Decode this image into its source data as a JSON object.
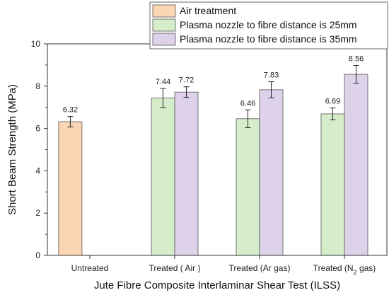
{
  "chart_data": {
    "type": "bar",
    "xlabel": "Jute Fibre Composite Interlaminar Shear Test (ILSS)",
    "ylabel": "Short Beam Strength (MPa)",
    "ylim": [
      0,
      10
    ],
    "yticks": [
      "0",
      "2",
      "4",
      "6",
      "8",
      "10"
    ],
    "categories": [
      "Untreated",
      "Treated ( Air )",
      "Treated (Ar gas)",
      "Treated (N2 gas)"
    ],
    "legend_position": "top-right",
    "series": [
      {
        "name": "Air treatment",
        "color": "#FCD5B4",
        "values": [
          6.32,
          null,
          null,
          null
        ],
        "errors": [
          0.25,
          null,
          null,
          null
        ],
        "labels": [
          "6.32",
          "",
          "",
          ""
        ]
      },
      {
        "name": "Plasma nozzle to fibre distance is 25mm",
        "color": "#D5EDCB",
        "values": [
          null,
          7.44,
          6.46,
          6.69
        ],
        "errors": [
          null,
          0.45,
          0.42,
          0.28
        ],
        "labels": [
          "",
          "7.44",
          "6.46",
          "6.69"
        ]
      },
      {
        "name": "Plasma nozzle to fibre distance is 35mm",
        "color": "#DDD2EA",
        "values": [
          null,
          7.72,
          7.83,
          8.56
        ],
        "errors": [
          null,
          0.25,
          0.38,
          0.42
        ],
        "labels": [
          "",
          "7.72",
          "7.83",
          "8.56"
        ]
      }
    ]
  }
}
